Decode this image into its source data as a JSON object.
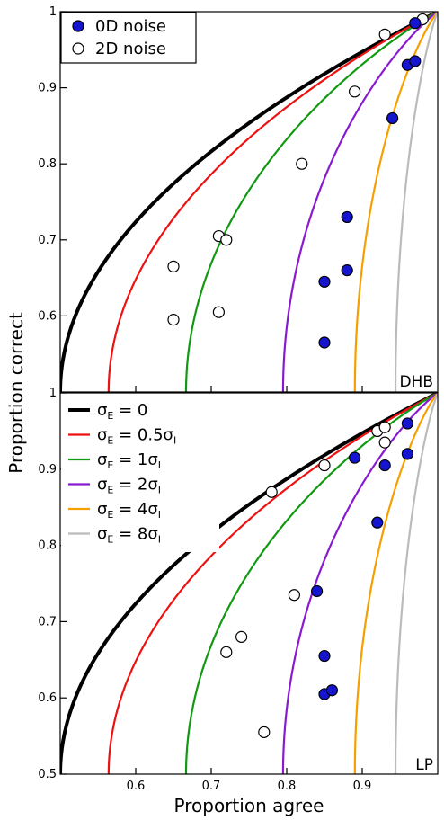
{
  "chart_data": {
    "type": "scatter",
    "xlabel": "Proportion agree",
    "ylabel": "Proportion correct",
    "xlim": [
      0.5,
      1.0
    ],
    "x_ticks": [
      "0.6",
      "0.7",
      "0.8",
      "0.9"
    ],
    "marker_legend": [
      {
        "name": "0D noise",
        "fill": "#1515d0"
      },
      {
        "name": "2D noise",
        "fill": "#ffffff"
      }
    ],
    "curve_legend": [
      {
        "base": "σ",
        "sub": "E",
        "eq": " = 0",
        "coef": "",
        "sub2": "",
        "color": "#000000"
      },
      {
        "base": "σ",
        "sub": "E",
        "eq": " = 0.5",
        "coef": "σ",
        "sub2": "I",
        "color": "#ee1111"
      },
      {
        "base": "σ",
        "sub": "E",
        "eq": " = 1",
        "coef": "σ",
        "sub2": "I",
        "color": "#119911"
      },
      {
        "base": "σ",
        "sub": "E",
        "eq": " = 2",
        "coef": "σ",
        "sub2": "I",
        "color": "#8a1ad0"
      },
      {
        "base": "σ",
        "sub": "E",
        "eq": " = 4",
        "coef": "σ",
        "sub2": "I",
        "color": "#f5a000"
      },
      {
        "base": "σ",
        "sub": "E",
        "eq": " = 8",
        "coef": "σ",
        "sub2": "I",
        "color": "#bbbbbb"
      }
    ],
    "curve_ratios": [
      0,
      0.5,
      1,
      2,
      4,
      8
    ],
    "panels": [
      {
        "tag": "DHB",
        "ylim": [
          0.5,
          1.0
        ],
        "y_ticks": [
          "0.6",
          "0.7",
          "0.8",
          "0.9",
          "1"
        ],
        "noise_0d": [
          [
            0.85,
            0.565
          ],
          [
            0.85,
            0.645
          ],
          [
            0.88,
            0.66
          ],
          [
            0.88,
            0.73
          ],
          [
            0.94,
            0.86
          ],
          [
            0.96,
            0.93
          ],
          [
            0.97,
            0.935
          ],
          [
            0.97,
            0.985
          ]
        ],
        "noise_2d": [
          [
            0.65,
            0.595
          ],
          [
            0.65,
            0.665
          ],
          [
            0.71,
            0.605
          ],
          [
            0.71,
            0.705
          ],
          [
            0.72,
            0.7
          ],
          [
            0.82,
            0.8
          ],
          [
            0.89,
            0.895
          ],
          [
            0.93,
            0.97
          ],
          [
            0.98,
            0.99
          ]
        ]
      },
      {
        "tag": "LP",
        "ylim": [
          0.5,
          1.0
        ],
        "y_ticks": [
          "0.5",
          "0.6",
          "0.7",
          "0.8",
          "0.9",
          "1"
        ],
        "noise_0d": [
          [
            0.84,
            0.74
          ],
          [
            0.85,
            0.655
          ],
          [
            0.85,
            0.605
          ],
          [
            0.86,
            0.61
          ],
          [
            0.89,
            0.915
          ],
          [
            0.92,
            0.83
          ],
          [
            0.93,
            0.905
          ],
          [
            0.96,
            0.92
          ],
          [
            0.96,
            0.96
          ]
        ],
        "noise_2d": [
          [
            0.72,
            0.66
          ],
          [
            0.74,
            0.68
          ],
          [
            0.77,
            0.555
          ],
          [
            0.78,
            0.87
          ],
          [
            0.81,
            0.735
          ],
          [
            0.85,
            0.905
          ],
          [
            0.92,
            0.95
          ],
          [
            0.93,
            0.935
          ],
          [
            0.93,
            0.955
          ]
        ]
      }
    ]
  }
}
